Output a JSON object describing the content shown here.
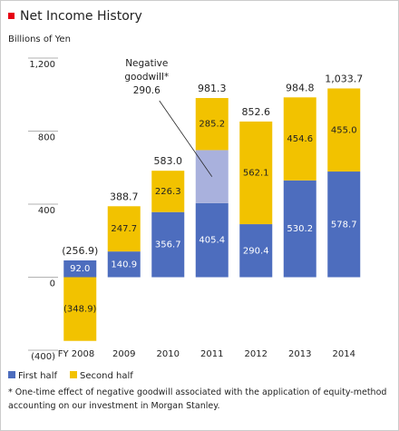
{
  "chart_data": {
    "type": "stacked-bar",
    "title": "Net Income History",
    "y_label": "Billions of Yen",
    "categories": [
      "FY 2008",
      "2009",
      "2010",
      "2011",
      "2012",
      "2013",
      "2014"
    ],
    "series": [
      {
        "name": "First half",
        "color": "#4d6dbe",
        "values": [
          92.0,
          140.9,
          356.7,
          405.4,
          290.4,
          530.2,
          578.7
        ],
        "value_labels": [
          "92.0",
          "140.9",
          "356.7",
          "405.4",
          "290.4",
          "530.2",
          "578.7"
        ]
      },
      {
        "name": "Negative goodwill*",
        "color": "#a9b1dd",
        "in_legend": false,
        "values": [
          null,
          null,
          null,
          290.6,
          null,
          null,
          null
        ],
        "value_labels": [
          null,
          null,
          null,
          "290.6",
          null,
          null,
          null
        ]
      },
      {
        "name": "Second half",
        "color": "#f2c200",
        "values": [
          -348.9,
          247.7,
          226.3,
          285.2,
          562.1,
          454.6,
          455.0
        ],
        "value_labels": [
          "(348.9)",
          "247.7",
          "226.3",
          "285.2",
          "562.1",
          "454.6",
          "455.0"
        ]
      }
    ],
    "totals": {
      "values": [
        -256.9,
        388.7,
        583.0,
        981.3,
        852.6,
        984.8,
        1033.7
      ],
      "value_labels": [
        "(256.9)",
        "388.7",
        "583.0",
        "981.3",
        "852.6",
        "984.8",
        "1,033.7"
      ]
    },
    "ylim": [
      -400,
      1200
    ],
    "yticks": [
      {
        "value": 1200,
        "label": "1,200"
      },
      800,
      400,
      0,
      {
        "value": -400,
        "label": "(400)"
      }
    ],
    "footnote": "* One-time effect of negative goodwill associated with the application of equity-method accounting on our investment in Morgan Stanley."
  }
}
